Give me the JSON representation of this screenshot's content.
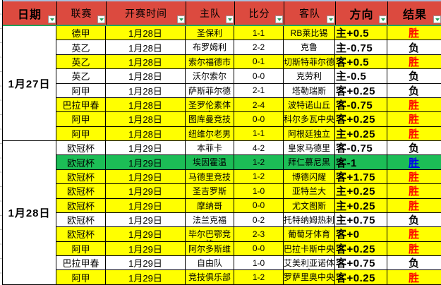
{
  "colors": {
    "header_red": "#dc4a3f",
    "selection_green": "#1fa15d",
    "top_line_blue": "#a8bedc",
    "row_yellow": "#ffff00",
    "row_green": "#1cbd56",
    "win_red": "#fe0000",
    "win_blue": "#0000ee",
    "loss_black": "#000000"
  },
  "table": {
    "columns": [
      {
        "key": "date",
        "label": "日期",
        "bold": true
      },
      {
        "key": "league",
        "label": "联赛",
        "bold": false
      },
      {
        "key": "time",
        "label": "开赛时间",
        "bold": false
      },
      {
        "key": "home",
        "label": "主队",
        "bold": false
      },
      {
        "key": "score",
        "label": "比分",
        "bold": false
      },
      {
        "key": "away",
        "label": "客队",
        "bold": false
      },
      {
        "key": "direction",
        "label": "方向",
        "bold": true
      },
      {
        "key": "result",
        "label": "结果",
        "bold": true
      }
    ],
    "filter_icon": "filter-dropdown-icon",
    "groups": [
      {
        "label": "1月27日",
        "rows": [
          {
            "league": "德甲",
            "time": "1月28日",
            "home": "圣保利",
            "score": "1-1",
            "away": "RB莱比锡",
            "direction": "主+0.5",
            "result": "胜",
            "bg": "yellow",
            "result_color": "red"
          },
          {
            "league": "英乙",
            "time": "1月28日",
            "home": "布罗姆利",
            "score": "2-2",
            "away": "克鲁",
            "direction": "主-0.75",
            "result": "负",
            "bg": "white",
            "result_color": "black"
          },
          {
            "league": "英乙",
            "time": "1月28日",
            "home": "索尔福德市",
            "score": "0-1",
            "away": "切斯特菲尔德",
            "direction": "客+0.5",
            "result": "胜",
            "bg": "yellow",
            "result_color": "red"
          },
          {
            "league": "英乙",
            "time": "1月28日",
            "home": "沃尔索尔",
            "score": "0-0",
            "away": "克劳利",
            "direction": "主-0.5",
            "result": "负",
            "bg": "white",
            "result_color": "black"
          },
          {
            "league": "阿甲",
            "time": "1月28日",
            "home": "萨斯菲尔德",
            "score": "2-1",
            "away": "塔勒瑞斯",
            "direction": "客+0.25",
            "result": "负",
            "bg": "white",
            "result_color": "black"
          },
          {
            "league": "巴拉甲春",
            "time": "1月28日",
            "home": "圣罗伦素体育",
            "score": "2-4",
            "away": "波特诺山丘",
            "direction": "客-0.75",
            "result": "胜",
            "bg": "yellow",
            "result_color": "red"
          },
          {
            "league": "阿甲",
            "time": "1月28日",
            "home": "图库曼竞技",
            "score": "0-0",
            "away": "科尔多瓦中央",
            "direction": "客+0.25",
            "result": "胜",
            "bg": "yellow",
            "result_color": "red"
          },
          {
            "league": "阿甲",
            "time": "1月28日",
            "home": "纽维尔老男孩",
            "score": "1-1",
            "away": "阿根廷独立",
            "direction": "主+0.25",
            "result": "胜",
            "bg": "yellow",
            "result_color": "red"
          }
        ]
      },
      {
        "label": "1月28日",
        "rows": [
          {
            "league": "欧冠杯",
            "time": "1月29日",
            "home": "本菲卡",
            "score": "4-2",
            "away": "皇家马德里",
            "direction": "客-0.75",
            "result": "负",
            "bg": "white",
            "result_color": "black"
          },
          {
            "league": "欧冠杯",
            "time": "1月29日",
            "home": "埃因霍温",
            "score": "1-2",
            "away": "拜仁慕尼黑",
            "direction": "客-1",
            "result": "胜",
            "bg": "green",
            "result_color": "blue"
          },
          {
            "league": "欧冠杯",
            "time": "1月29日",
            "home": "马德里竞技",
            "score": "1-2",
            "away": "博德闪耀",
            "direction": "客+1.75",
            "result": "胜",
            "bg": "yellow",
            "result_color": "red"
          },
          {
            "league": "欧冠杯",
            "time": "1月29日",
            "home": "圣吉罗斯",
            "score": "1-0",
            "away": "亚特兰大",
            "direction": "主+0.25",
            "result": "胜",
            "bg": "yellow",
            "result_color": "red"
          },
          {
            "league": "欧冠杯",
            "time": "1月29日",
            "home": "摩纳哥",
            "score": "0-0",
            "away": "尤文图斯",
            "direction": "主+0.25",
            "result": "胜",
            "bg": "yellow",
            "result_color": "red"
          },
          {
            "league": "欧冠杯",
            "time": "1月29日",
            "home": "法兰克福",
            "score": "0-2",
            "away": "托特纳姆热刺",
            "direction": "主+0.75",
            "result": "负",
            "bg": "white",
            "result_color": "black"
          },
          {
            "league": "欧冠杯",
            "time": "1月29日",
            "home": "毕尔巴鄂竞技",
            "score": "2-3",
            "away": "葡萄牙体育",
            "direction": "客+0",
            "result": "胜",
            "bg": "yellow",
            "result_color": "red"
          },
          {
            "league": "阿甲",
            "time": "1月29日",
            "home": "阿尔多斯维",
            "score": "0-0",
            "away": "巴拉卡斯中央",
            "direction": "客+0.25",
            "result": "胜",
            "bg": "yellow",
            "result_color": "red"
          },
          {
            "league": "巴拉甲春",
            "time": "1月29日",
            "home": "自由队",
            "score": "1-0",
            "away": "艾美利亚诺体育",
            "direction": "客+0.75",
            "result": "负",
            "bg": "white",
            "result_color": "black"
          },
          {
            "league": "阿甲",
            "time": "1月29日",
            "home": "竞技俱乐部",
            "score": "1-2",
            "away": "罗萨里奥中央",
            "direction": "客+0.25",
            "result": "胜",
            "bg": "yellow",
            "result_color": "red"
          }
        ]
      }
    ]
  }
}
